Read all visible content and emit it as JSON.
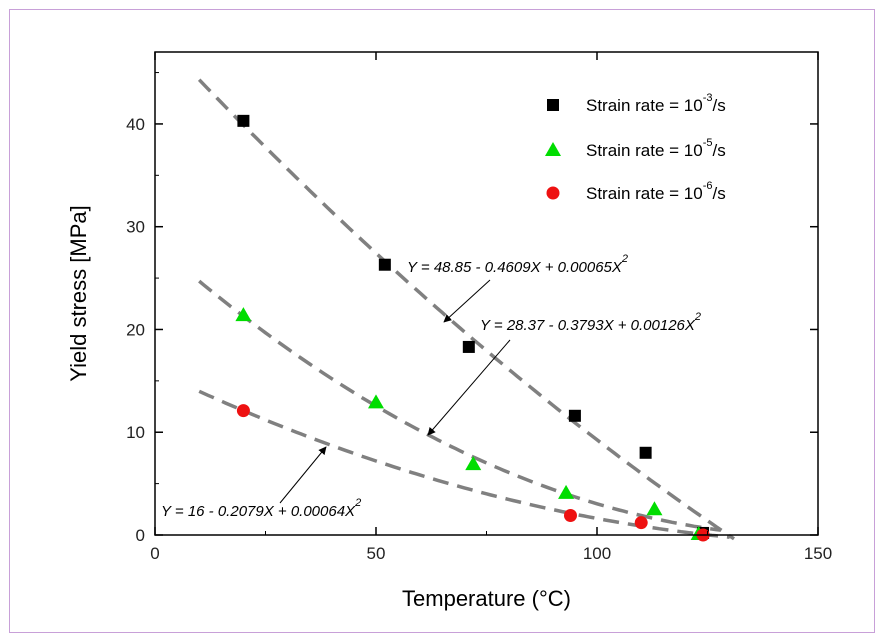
{
  "chart_data": {
    "type": "scatter",
    "xlabel": "Temperature (°C)",
    "ylabel": "Yield stress [MPa]",
    "xlim": [
      0,
      150
    ],
    "ylim": [
      0,
      47
    ],
    "x_ticks": [
      0,
      50,
      100,
      150
    ],
    "y_ticks": [
      0,
      10,
      20,
      30,
      40
    ],
    "grid": false,
    "legend_position": "top-right",
    "series": [
      {
        "name": "Strain rate = 10^-3/s",
        "legend_base": "Strain rate = 10",
        "legend_exp": "-3",
        "legend_tail": "/s",
        "marker": "square",
        "color": "#000000",
        "x": [
          20,
          52,
          71,
          95,
          111,
          124
        ],
        "y": [
          40.3,
          26.3,
          18.3,
          11.6,
          8.0,
          0.2
        ],
        "fit": {
          "a": 48.85,
          "b": -0.4609,
          "c": 0.00065,
          "x_range": [
            10,
            131
          ],
          "label": "Y = 48.85 - 0.4609X + 0.00065X",
          "label_exp": "2"
        }
      },
      {
        "name": "Strain rate = 10^-5/s",
        "legend_base": "Strain rate = 10",
        "legend_exp": "-5",
        "legend_tail": "/s",
        "marker": "triangle",
        "color": "#00dd00",
        "x": [
          20,
          50,
          72,
          93,
          113,
          123
        ],
        "y": [
          21.4,
          12.9,
          6.9,
          4.1,
          2.5,
          0.1
        ],
        "fit": {
          "a": 28.37,
          "b": -0.3793,
          "c": 0.00126,
          "x_range": [
            10,
            128
          ],
          "label": "Y = 28.37 - 0.3793X + 0.00126X",
          "label_exp": "2"
        }
      },
      {
        "name": "Strain rate = 10^-6/s",
        "legend_base": "Strain rate = 10",
        "legend_exp": "-6",
        "legend_tail": "/s",
        "marker": "circle",
        "color": "#ee1111",
        "x": [
          20,
          94,
          110,
          124
        ],
        "y": [
          12.1,
          1.9,
          1.2,
          0.0
        ],
        "fit": {
          "a": 16,
          "b": -0.2079,
          "c": 0.00064,
          "x_range": [
            10,
            130
          ],
          "label": "Y = 16 - 0.2079X + 0.00064X",
          "label_exp": "2"
        }
      }
    ],
    "line_color": "#808080",
    "axis_color": "#000000"
  }
}
